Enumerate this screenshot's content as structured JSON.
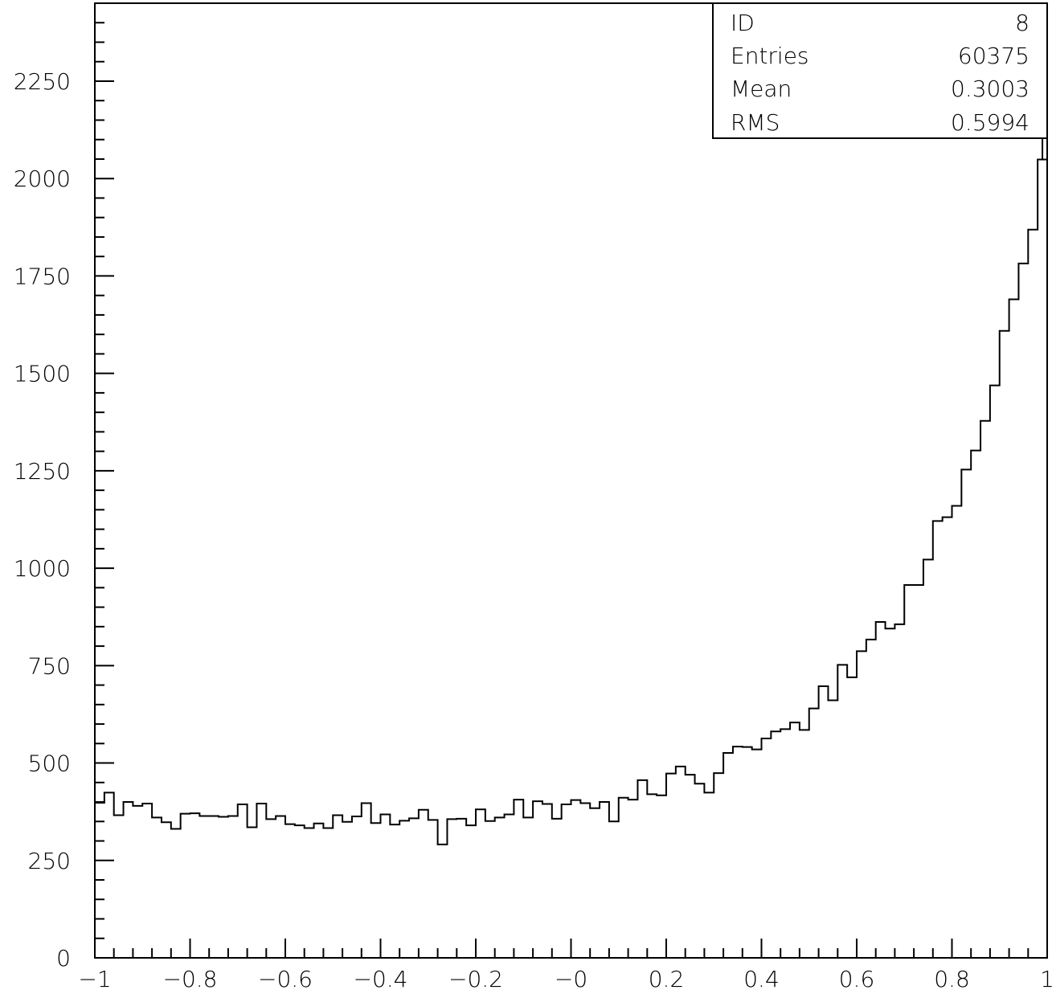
{
  "chart_data": {
    "type": "histogram",
    "title": "",
    "xlabel": "",
    "ylabel": "",
    "xlim": [
      -1,
      1
    ],
    "ylim": [
      0,
      2450
    ],
    "x_ticks": [
      -1,
      -0.8,
      -0.6,
      -0.4,
      -0.2,
      0,
      0.2,
      0.4,
      0.6,
      0.8,
      1
    ],
    "x_tick_labels": [
      "−1",
      "−0.8",
      "−0.6",
      "−0.4",
      "−0.2",
      "−0",
      "0.2",
      "0.4",
      "0.6",
      "0.8",
      "1"
    ],
    "y_ticks": [
      0,
      250,
      500,
      750,
      1000,
      1250,
      1500,
      1750,
      2000,
      2250
    ],
    "y_tick_labels": [
      "0",
      "250",
      "500",
      "750",
      "1000",
      "1250",
      "1500",
      "1750",
      "2000",
      "2250"
    ],
    "bin_width": 0.02,
    "values": [
      398,
      424,
      366,
      400,
      390,
      396,
      360,
      348,
      331,
      370,
      371,
      364,
      364,
      362,
      364,
      394,
      335,
      396,
      356,
      364,
      343,
      340,
      333,
      345,
      333,
      366,
      349,
      363,
      397,
      346,
      368,
      342,
      352,
      358,
      380,
      354,
      291,
      356,
      357,
      340,
      381,
      351,
      360,
      368,
      406,
      360,
      402,
      395,
      357,
      394,
      405,
      397,
      384,
      400,
      350,
      411,
      406,
      456,
      420,
      417,
      473,
      491,
      470,
      447,
      424,
      474,
      526,
      542,
      541,
      535,
      563,
      581,
      587,
      604,
      585,
      640,
      697,
      661,
      752,
      720,
      787,
      817,
      862,
      845,
      856,
      957,
      957,
      1022,
      1121,
      1131,
      1160,
      1253,
      1302,
      1378,
      1469,
      1609,
      1690,
      1782,
      1869,
      2049
    ],
    "last_bin_extra": 2200,
    "grid": false,
    "stats_box": {
      "position": "top-right",
      "rows": [
        {
          "label": "ID",
          "value": "8"
        },
        {
          "label": "Entries",
          "value": "60375"
        },
        {
          "label": "Mean",
          "value": "0.3003"
        },
        {
          "label": "RMS",
          "value": "0.5994"
        }
      ]
    }
  }
}
